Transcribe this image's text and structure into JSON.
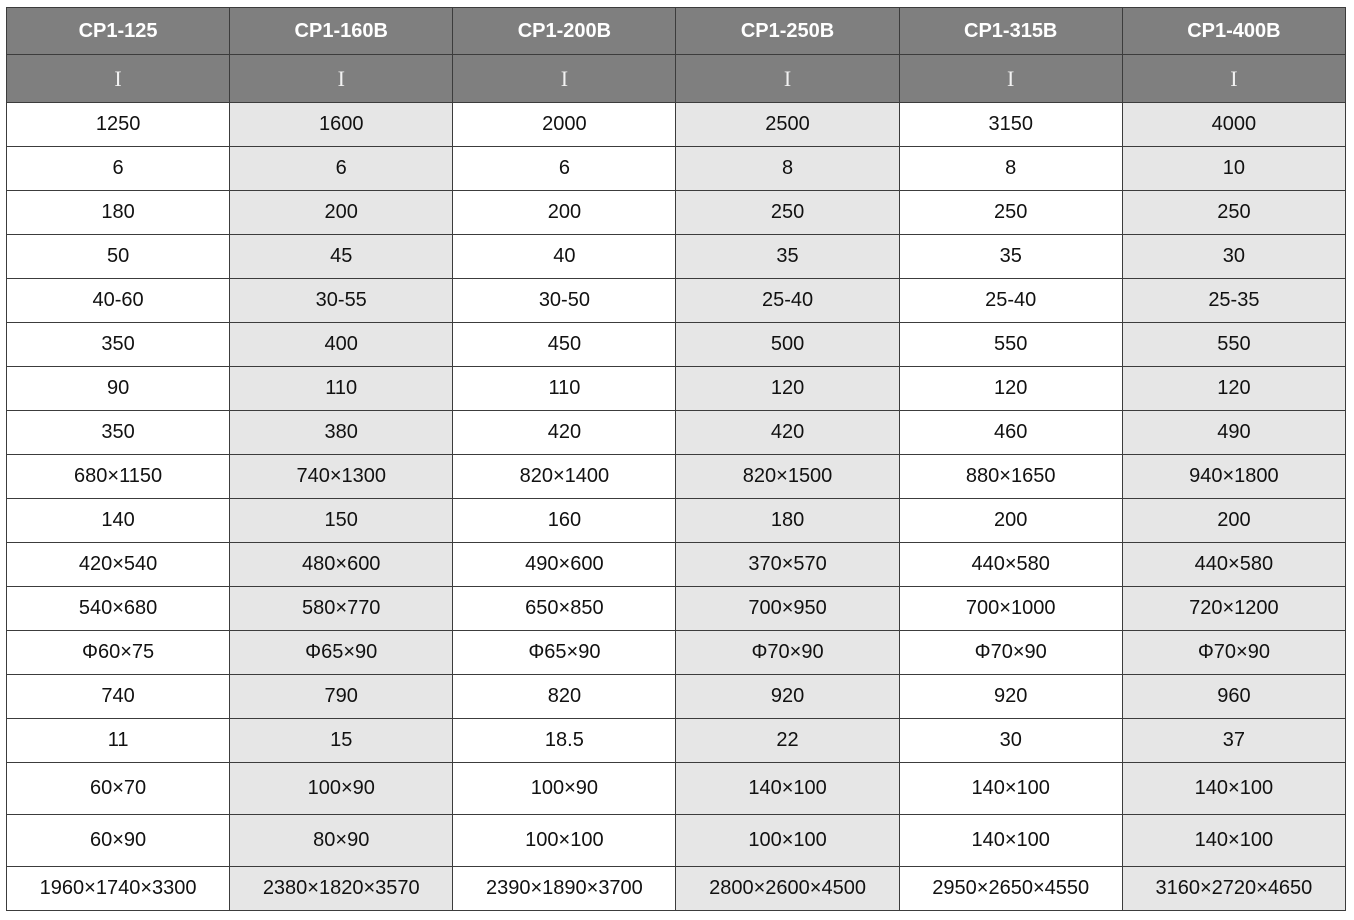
{
  "table": {
    "headers": [
      "CP1-125",
      "CP1-160B",
      "CP1-200B",
      "CP1-250B",
      "CP1-315B",
      "CP1-400B"
    ],
    "subheaders": [
      "I",
      "I",
      "I",
      "I",
      "I",
      "I"
    ],
    "rows": [
      [
        "1250",
        "1600",
        "2000",
        "2500",
        "3150",
        "4000"
      ],
      [
        "6",
        "6",
        "6",
        "8",
        "8",
        "10"
      ],
      [
        "180",
        "200",
        "200",
        "250",
        "250",
        "250"
      ],
      [
        "50",
        "45",
        "40",
        "35",
        "35",
        "30"
      ],
      [
        "40-60",
        "30-55",
        "30-50",
        "25-40",
        "25-40",
        "25-35"
      ],
      [
        "350",
        "400",
        "450",
        "500",
        "550",
        "550"
      ],
      [
        "90",
        "110",
        "110",
        "120",
        "120",
        "120"
      ],
      [
        "350",
        "380",
        "420",
        "420",
        "460",
        "490"
      ],
      [
        "680×1150",
        "740×1300",
        "820×1400",
        "820×1500",
        "880×1650",
        "940×1800"
      ],
      [
        "140",
        "150",
        "160",
        "180",
        "200",
        "200"
      ],
      [
        "420×540",
        "480×600",
        "490×600",
        "370×570",
        "440×580",
        "440×580"
      ],
      [
        "540×680",
        "580×770",
        "650×850",
        "700×950",
        "700×1000",
        "720×1200"
      ],
      [
        "Φ60×75",
        "Φ65×90",
        "Φ65×90",
        "Φ70×90",
        "Φ70×90",
        "Φ70×90"
      ],
      [
        "740",
        "790",
        "820",
        "920",
        "920",
        "960"
      ],
      [
        "11",
        "15",
        "18.5",
        "22",
        "30",
        "37"
      ],
      [
        "60×70",
        "100×90",
        "100×90",
        "140×100",
        "140×100",
        "140×100"
      ],
      [
        "60×90",
        "80×90",
        "100×100",
        "100×100",
        "140×100",
        "140×100"
      ],
      [
        "1960×1740×3300",
        "2380×1820×3570",
        "2390×1890×3700",
        "2800×2600×4500",
        "2950×2650×4550",
        "3160×2720×4650"
      ]
    ]
  }
}
